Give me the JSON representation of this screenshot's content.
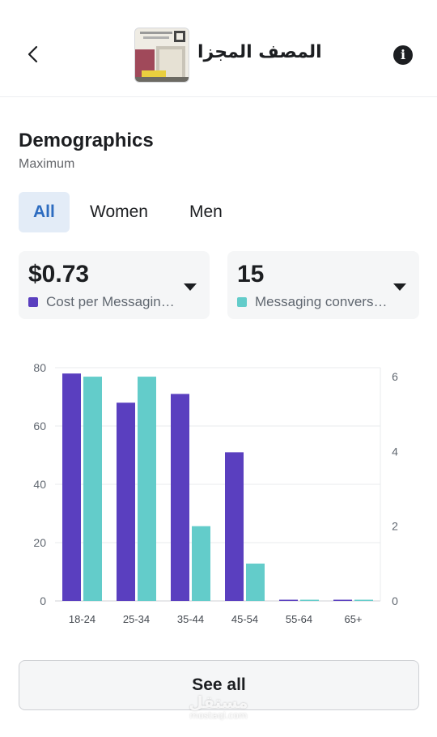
{
  "header": {
    "title": "المصف المجزا",
    "back_icon": "chevron-left-icon",
    "info_icon": "info-icon",
    "info_glyph": "i"
  },
  "section": {
    "title": "Demographics",
    "subtitle": "Maximum"
  },
  "segments": [
    {
      "label": "All",
      "active": true
    },
    {
      "label": "Women",
      "active": false
    },
    {
      "label": "Men",
      "active": false
    }
  ],
  "metrics": [
    {
      "value": "$0.73",
      "label": "Cost per Messagin…",
      "color": "#5a3fbf",
      "icon": "caret-down-icon"
    },
    {
      "value": "15",
      "label": "Messaging convers…",
      "color": "#63ccca",
      "icon": "caret-down-icon"
    }
  ],
  "chart_data": {
    "type": "bar",
    "categories": [
      "18-24",
      "25-34",
      "35-44",
      "45-54",
      "55-64",
      "65+"
    ],
    "series": [
      {
        "axis": "left",
        "color": "#5a3fbf",
        "values": [
          78,
          68,
          71,
          51,
          0,
          0
        ]
      },
      {
        "axis": "right",
        "color": "#63ccca",
        "values": [
          6,
          6,
          2,
          1,
          0,
          0
        ]
      }
    ],
    "left_axis": {
      "ticks": [
        "0",
        "20",
        "40",
        "60",
        "80"
      ],
      "ylim": [
        0,
        80
      ]
    },
    "right_axis": {
      "ticks": [
        "0",
        "2",
        "4",
        "6"
      ],
      "ylim": [
        0,
        6.24
      ]
    },
    "grid": true
  },
  "footer": {
    "see_all_label": "See all",
    "watermark_ar": "مستقل",
    "watermark_en": "mostaql.com"
  }
}
